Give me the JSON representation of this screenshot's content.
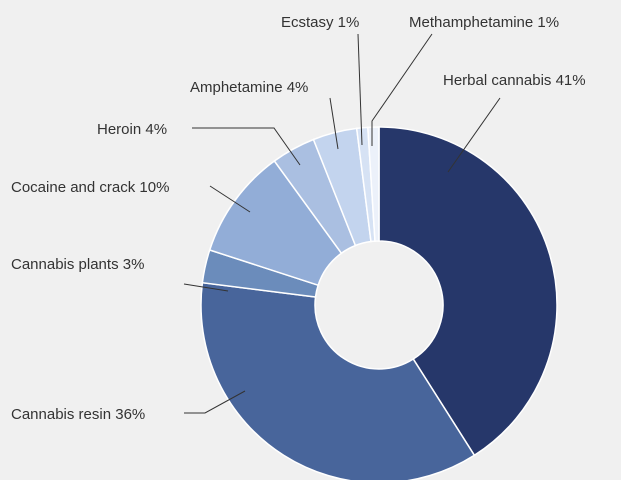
{
  "chart_data": {
    "type": "pie",
    "variant": "donut",
    "title": "",
    "slices": [
      {
        "label": "Herbal cannabis",
        "value": 41,
        "color": "#26376a"
      },
      {
        "label": "Cannabis resin",
        "value": 36,
        "color": "#48659b"
      },
      {
        "label": "Cannabis plants",
        "value": 3,
        "color": "#6b8cbb"
      },
      {
        "label": "Cocaine and crack",
        "value": 10,
        "color": "#92add7"
      },
      {
        "label": "Heroin",
        "value": 4,
        "color": "#aabfe1"
      },
      {
        "label": "Amphetamine",
        "value": 4,
        "color": "#c3d4ee"
      },
      {
        "label": "Ecstasy",
        "value": 1,
        "color": "#d6e2f4"
      },
      {
        "label": "Methamphetamine",
        "value": 1,
        "color": "#ecf1fa"
      }
    ],
    "labels": [
      "Herbal cannabis 41%",
      "Cannabis resin 36%",
      "Cannabis plants 3%",
      "Cocaine and crack 10%",
      "Heroin 4%",
      "Amphetamine 4%",
      "Ecstasy 1%",
      "Methamphetamine 1%"
    ],
    "legend": "none",
    "unit": "%"
  }
}
